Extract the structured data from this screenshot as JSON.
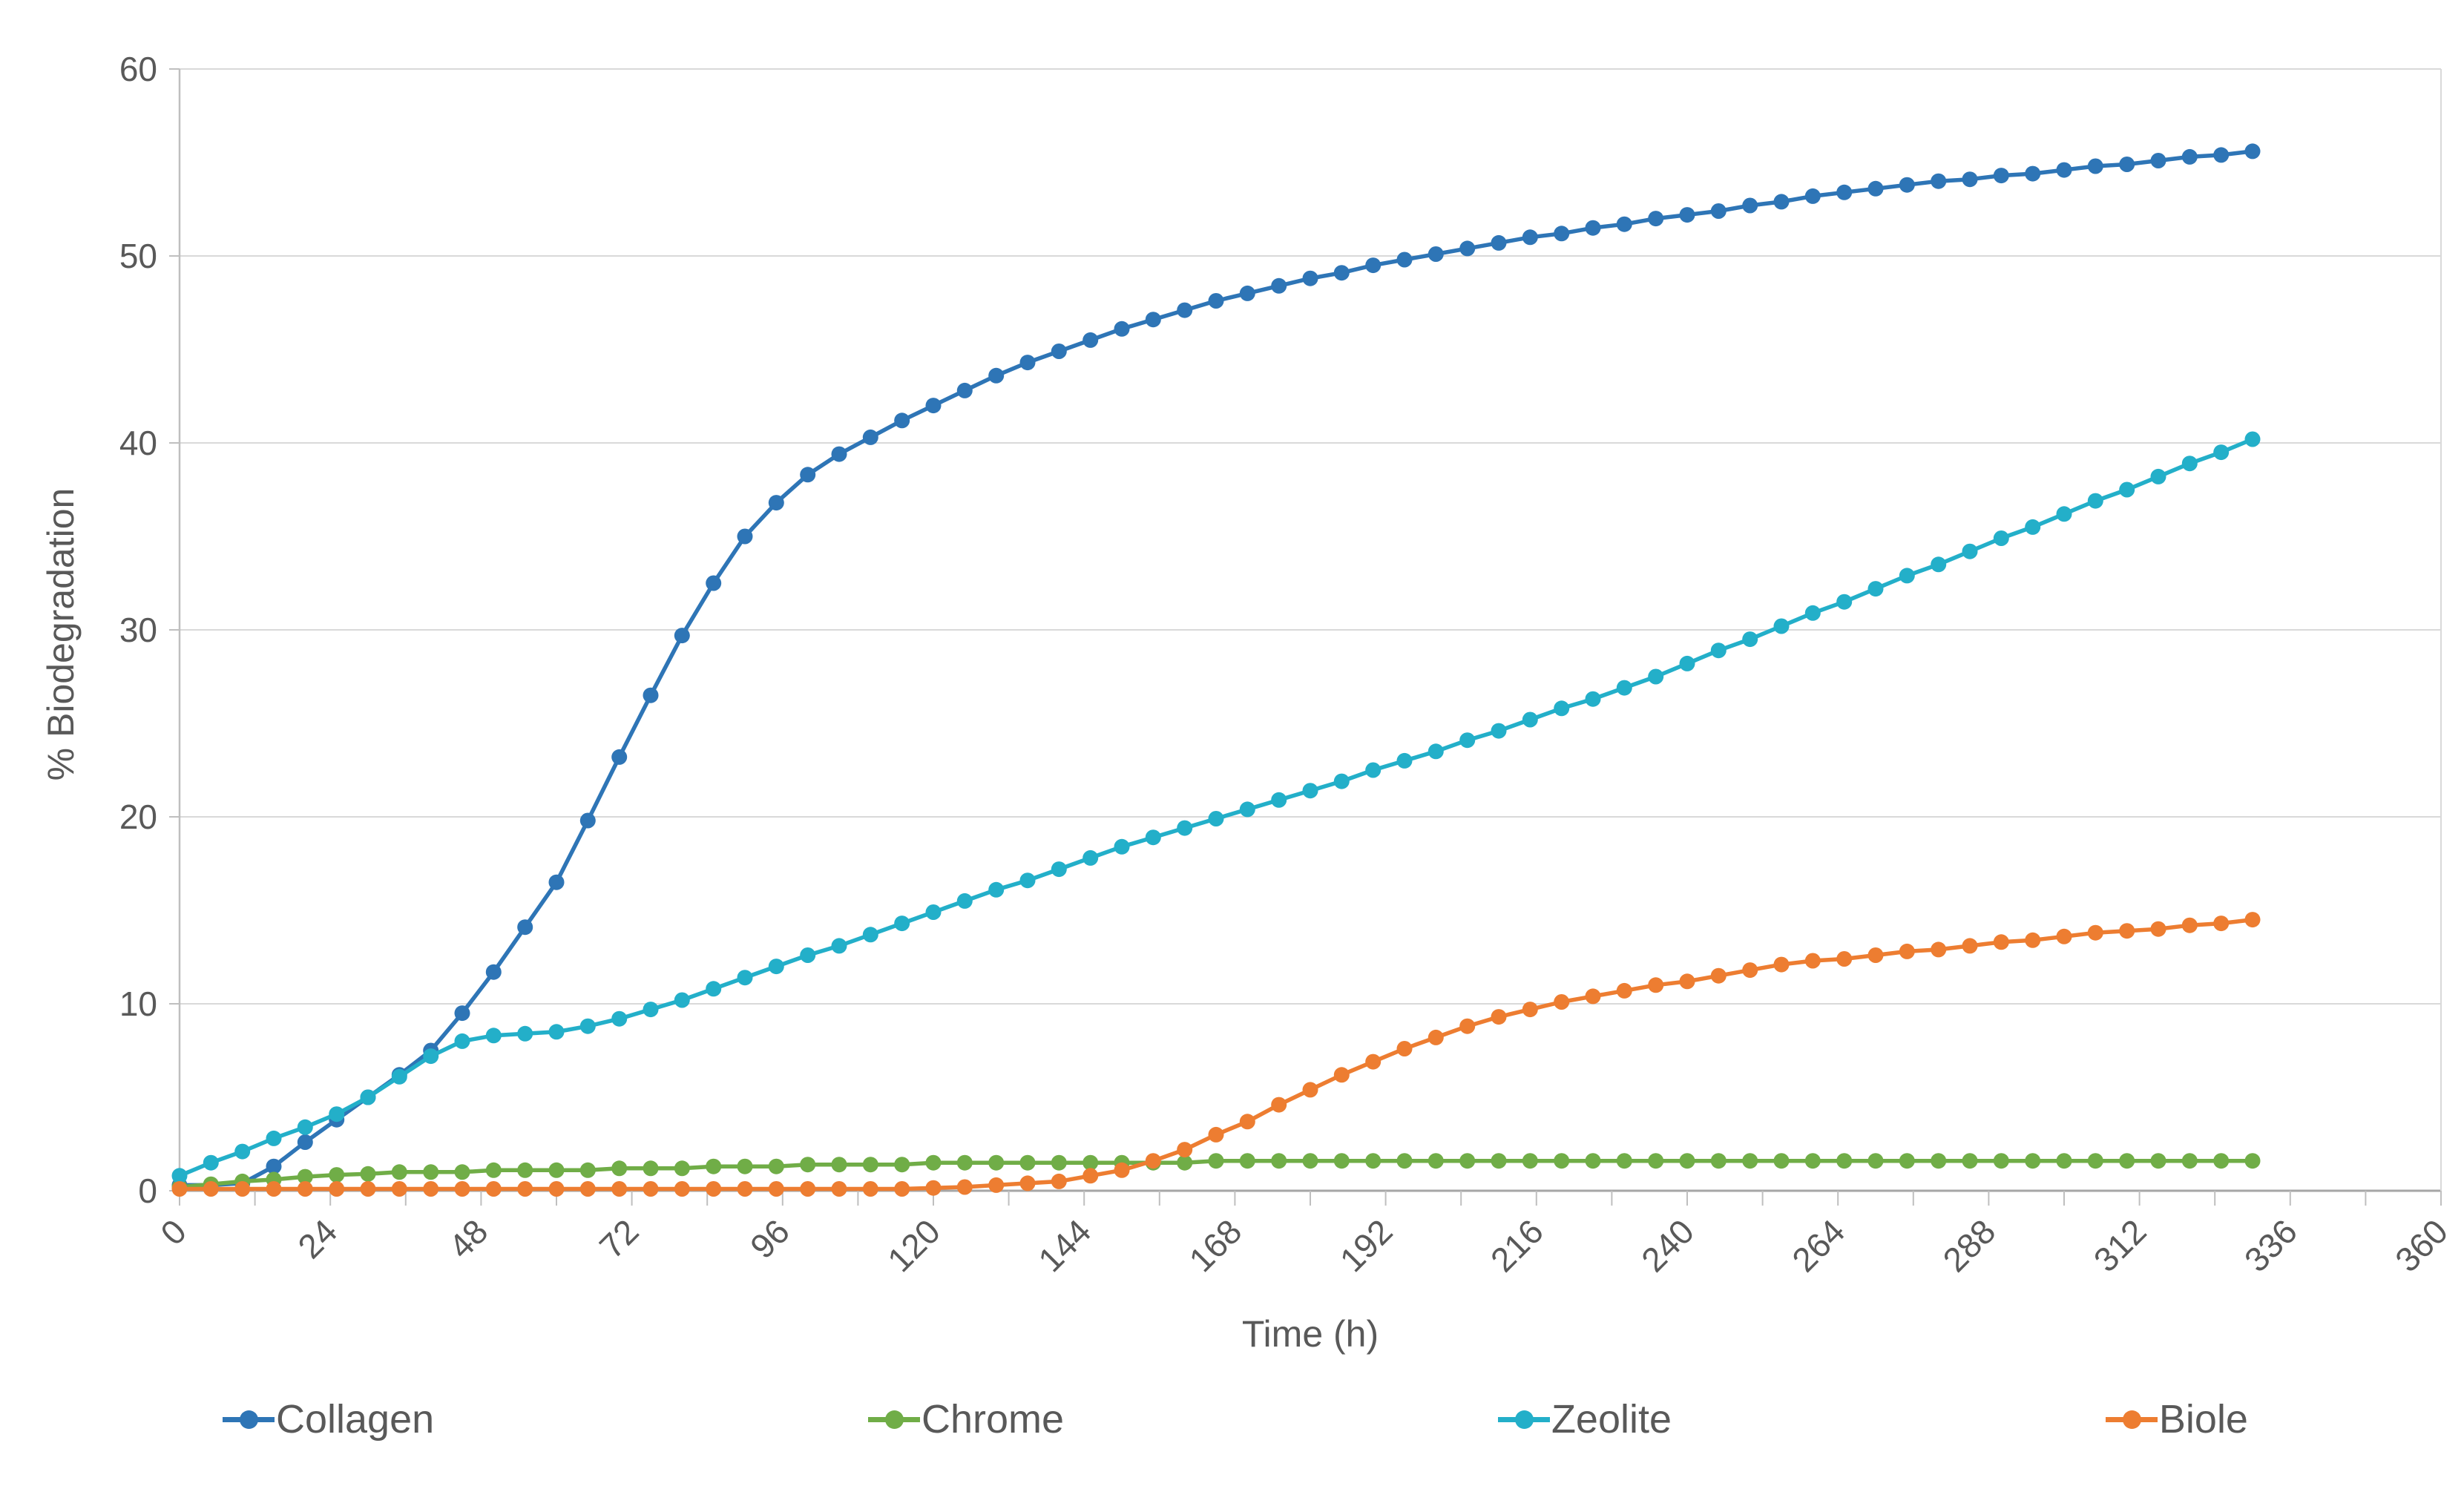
{
  "chart_data": {
    "type": "line",
    "title": "",
    "xlabel": "Time (h)",
    "ylabel": "% Biodegradation",
    "xlim": [
      0,
      360
    ],
    "ylim": [
      0,
      60
    ],
    "x_tick_labels": [
      0,
      24,
      48,
      72,
      96,
      120,
      144,
      168,
      192,
      216,
      240,
      264,
      288,
      312,
      336,
      360
    ],
    "y_tick_labels": [
      0,
      10,
      20,
      30,
      40,
      50,
      60
    ],
    "x_minor_tick_step": 12,
    "grid": "horizontal-only",
    "legend_position": "bottom",
    "marker": "circle",
    "x_step_hours": 5,
    "x": [
      0,
      5,
      10,
      15,
      20,
      25,
      30,
      35,
      40,
      45,
      50,
      55,
      60,
      65,
      70,
      75,
      80,
      85,
      90,
      95,
      100,
      105,
      110,
      115,
      120,
      125,
      130,
      135,
      140,
      145,
      150,
      155,
      160,
      165,
      170,
      175,
      180,
      185,
      190,
      195,
      200,
      205,
      210,
      215,
      220,
      225,
      230,
      235,
      240,
      245,
      250,
      255,
      260,
      265,
      270,
      275,
      280,
      285,
      290,
      295,
      300,
      305,
      310,
      315,
      320,
      325,
      330
    ],
    "series": [
      {
        "name": "Collagen",
        "color": "#2E75B6",
        "values": [
          0.3,
          0.3,
          0.4,
          1.3,
          2.6,
          3.8,
          5.0,
          6.2,
          7.5,
          9.5,
          11.7,
          14.1,
          16.5,
          19.8,
          23.2,
          26.5,
          29.7,
          32.5,
          35.0,
          36.8,
          38.3,
          39.4,
          40.3,
          41.2,
          42.0,
          42.8,
          43.6,
          44.3,
          44.9,
          45.5,
          46.1,
          46.6,
          47.1,
          47.6,
          48.0,
          48.4,
          48.8,
          49.1,
          49.5,
          49.8,
          50.1,
          50.4,
          50.7,
          51.0,
          51.2,
          51.5,
          51.7,
          52.0,
          52.2,
          52.4,
          52.7,
          52.9,
          53.2,
          53.4,
          53.6,
          53.8,
          54.0,
          54.1,
          54.3,
          54.4,
          54.6,
          54.8,
          54.9,
          55.1,
          55.3,
          55.4,
          55.6
        ]
      },
      {
        "name": "Chrome",
        "color": "#70AD47",
        "values": [
          0.2,
          0.35,
          0.5,
          0.6,
          0.75,
          0.85,
          0.9,
          1.0,
          1.0,
          1.0,
          1.1,
          1.1,
          1.1,
          1.1,
          1.2,
          1.2,
          1.2,
          1.3,
          1.3,
          1.3,
          1.4,
          1.4,
          1.4,
          1.4,
          1.5,
          1.5,
          1.5,
          1.5,
          1.5,
          1.5,
          1.5,
          1.5,
          1.5,
          1.6,
          1.6,
          1.6,
          1.6,
          1.6,
          1.6,
          1.6,
          1.6,
          1.6,
          1.6,
          1.6,
          1.6,
          1.6,
          1.6,
          1.6,
          1.6,
          1.6,
          1.6,
          1.6,
          1.6,
          1.6,
          1.6,
          1.6,
          1.6,
          1.6,
          1.6,
          1.6,
          1.6,
          1.6,
          1.6,
          1.6,
          1.6,
          1.6,
          1.6
        ]
      },
      {
        "name": "Zeolite",
        "color": "#23AFC9",
        "values": [
          0.8,
          1.5,
          2.1,
          2.8,
          3.4,
          4.1,
          5.0,
          6.1,
          7.2,
          8.0,
          8.3,
          8.4,
          8.5,
          8.8,
          9.2,
          9.7,
          10.2,
          10.8,
          11.4,
          12.0,
          12.6,
          13.1,
          13.7,
          14.3,
          14.9,
          15.5,
          16.1,
          16.6,
          17.2,
          17.8,
          18.4,
          18.9,
          19.4,
          19.9,
          20.4,
          20.9,
          21.4,
          21.9,
          22.5,
          23.0,
          23.5,
          24.1,
          24.6,
          25.2,
          25.8,
          26.3,
          26.9,
          27.5,
          28.2,
          28.9,
          29.5,
          30.2,
          30.9,
          31.5,
          32.2,
          32.9,
          33.5,
          34.2,
          34.9,
          35.5,
          36.2,
          36.9,
          37.5,
          38.2,
          38.9,
          39.5,
          40.2
        ]
      },
      {
        "name": "Biole",
        "color": "#ED7D31",
        "values": [
          0.1,
          0.1,
          0.1,
          0.1,
          0.1,
          0.1,
          0.1,
          0.1,
          0.1,
          0.1,
          0.1,
          0.1,
          0.1,
          0.1,
          0.1,
          0.1,
          0.1,
          0.1,
          0.1,
          0.1,
          0.1,
          0.1,
          0.1,
          0.1,
          0.15,
          0.2,
          0.3,
          0.4,
          0.5,
          0.8,
          1.1,
          1.6,
          2.2,
          3.0,
          3.7,
          4.6,
          5.4,
          6.2,
          6.9,
          7.6,
          8.2,
          8.8,
          9.3,
          9.7,
          10.1,
          10.4,
          10.7,
          11.0,
          11.2,
          11.5,
          11.8,
          12.1,
          12.3,
          12.4,
          12.6,
          12.8,
          12.9,
          13.1,
          13.3,
          13.4,
          13.6,
          13.8,
          13.9,
          14.0,
          14.2,
          14.3,
          14.5
        ]
      }
    ]
  },
  "style_colors": {
    "gridline": "#D9D9D9",
    "axis_line": "#BFBFBF",
    "baseline": "#A6A6A6",
    "tick": "#BFBFBF",
    "label_text": "#595959"
  }
}
